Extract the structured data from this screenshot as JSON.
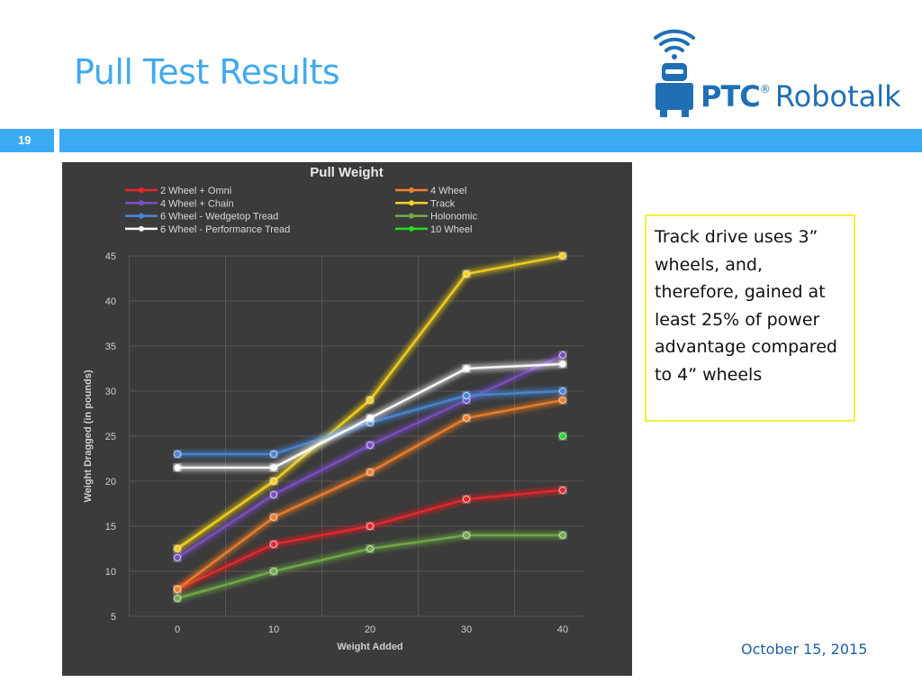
{
  "slide": {
    "title": "Pull Test Results",
    "number": "19",
    "date": "October 15, 2015",
    "callout": "Track drive uses 3” wheels, and, therefore, gained at least 25% of power advantage compared to 4” wheels"
  },
  "logo": {
    "brand": "PTC",
    "registered": "®",
    "product": "Robotalk"
  },
  "colors": {
    "accent": "#3caaf2",
    "title": "#42a9f0",
    "chart_bg": "#3b3b3b",
    "callout_border": "#f3ef3b",
    "logo_blue": "#1f6fb5"
  },
  "chart_data": {
    "type": "line",
    "title": "Pull Weight",
    "xlabel": "Weight Added",
    "ylabel": "Weight Dragged (in pounds)",
    "x": [
      0,
      10,
      20,
      30,
      40
    ],
    "ylim": [
      5,
      45
    ],
    "yticks": [
      5,
      10,
      15,
      20,
      25,
      30,
      35,
      40,
      45
    ],
    "grid": true,
    "legend_position": "top",
    "series": [
      {
        "name": "2 Wheel + Omni",
        "color": "#e8262c",
        "values": [
          8,
          13,
          15,
          18,
          19
        ]
      },
      {
        "name": "4 Wheel",
        "color": "#f07f2c",
        "values": [
          8,
          16,
          21,
          27,
          29
        ]
      },
      {
        "name": "4 Wheel + Chain",
        "color": "#7a4fc4",
        "values": [
          11.5,
          18.5,
          24,
          29,
          34
        ]
      },
      {
        "name": "Track",
        "color": "#f5d21f",
        "values": [
          12.5,
          20,
          29,
          43,
          45
        ]
      },
      {
        "name": "6 Wheel - Wedgetop Tread",
        "color": "#4a86d6",
        "values": [
          23,
          23,
          26.5,
          29.5,
          30
        ]
      },
      {
        "name": "Holonomic",
        "color": "#70ad47",
        "values": [
          7,
          10,
          12.5,
          14,
          14
        ]
      },
      {
        "name": "6 Wheel - Performance Tread",
        "color": "#ffffff",
        "values": [
          21.5,
          21.5,
          27,
          32.5,
          33
        ]
      },
      {
        "name": "10 Wheel",
        "color": "#22dd22",
        "values": [
          null,
          null,
          null,
          null,
          25
        ]
      }
    ]
  }
}
